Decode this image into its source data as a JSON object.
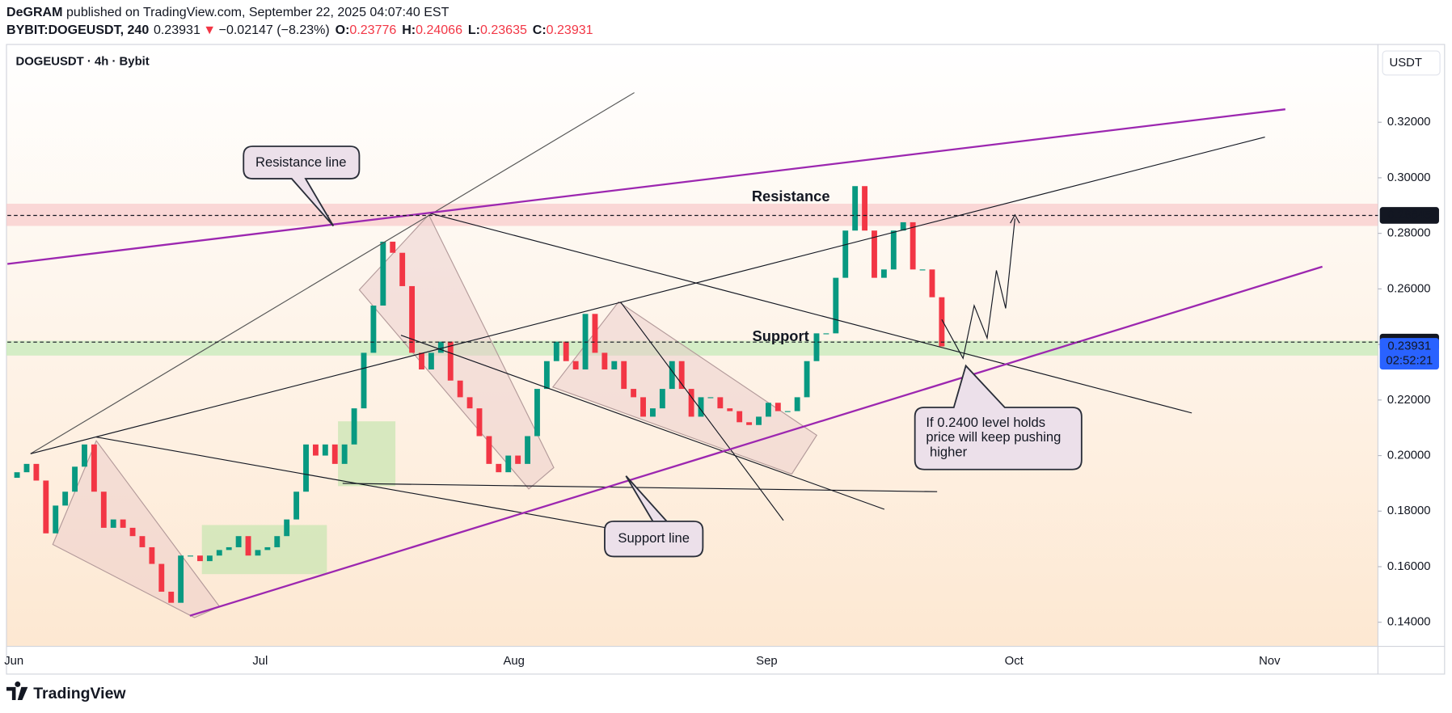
{
  "header": {
    "publisher": "DeGRAM",
    "published": "published on TradingView.com, September 22, 2025 04:07:40 EST",
    "symbol": "BYBIT:DOGEUSDT, 240",
    "last": "0.23931",
    "arrow": "▼",
    "change": "−0.02147 (−8.23%)",
    "ohlc": [
      {
        "key": "O:",
        "value": "0.23776"
      },
      {
        "key": "H:",
        "value": "0.24066"
      },
      {
        "key": "L:",
        "value": "0.23635"
      },
      {
        "key": "C:",
        "value": "0.23931"
      }
    ]
  },
  "footer": {
    "brand": "TradingView"
  },
  "chart_data": {
    "type": "candlestick",
    "title": "DOGEUSDT · 4h · Bybit",
    "currency": "USDT",
    "up_color": "#089981",
    "down_color": "#f23645",
    "values": [
      0.192,
      0.194,
      0.197,
      0.191,
      0.172,
      0.182,
      0.187,
      0.196,
      0.204,
      0.187,
      0.174,
      0.177,
      0.174,
      0.171,
      0.167,
      0.161,
      0.151,
      0.147,
      0.164,
      0.164,
      0.162,
      0.164,
      0.166,
      0.167,
      0.171,
      0.164,
      0.166,
      0.167,
      0.171,
      0.177,
      0.187,
      0.204,
      0.2,
      0.204,
      0.197,
      0.204,
      0.217,
      0.237,
      0.254,
      0.277,
      0.273,
      0.261,
      0.237,
      0.231,
      0.237,
      0.241,
      0.227,
      0.221,
      0.217,
      0.207,
      0.197,
      0.194,
      0.2,
      0.197,
      0.207,
      0.224,
      0.234,
      0.241,
      0.234,
      0.231,
      0.251,
      0.237,
      0.231,
      0.234,
      0.224,
      0.221,
      0.214,
      0.217,
      0.224,
      0.234,
      0.224,
      0.214,
      0.221,
      0.221,
      0.217,
      0.216,
      0.212,
      0.211,
      0.214,
      0.219,
      0.216,
      0.216,
      0.221,
      0.234,
      0.244,
      0.244,
      0.264,
      0.281,
      0.297,
      0.281,
      0.264,
      0.267,
      0.281,
      0.284,
      0.267,
      0.267,
      0.257,
      0.23931
    ],
    "x_labels": [
      "Jun",
      "Jul",
      "Aug",
      "Sep",
      "Oct",
      "Nov"
    ],
    "ylim": [
      0.13133,
      0.348
    ],
    "yticks": [
      {
        "value": 0.14,
        "label": "0.14000"
      },
      {
        "value": 0.16,
        "label": "0.16000"
      },
      {
        "value": 0.18,
        "label": "0.18000"
      },
      {
        "value": 0.2,
        "label": "0.20000"
      },
      {
        "value": 0.22,
        "label": "0.22000"
      },
      {
        "value": 0.24,
        "label": "0.24000"
      },
      {
        "value": 0.26,
        "label": "0.26000"
      },
      {
        "value": 0.28,
        "label": "0.28000"
      },
      {
        "value": 0.3,
        "label": "0.30000"
      },
      {
        "value": 0.32,
        "label": "0.32000"
      }
    ],
    "levels": [
      0.28645,
      0.24085
    ],
    "last_price": 0.23931,
    "countdown": "02:52:21",
    "annotations": {
      "resistance_line": "Resistance line",
      "resistance": "Resistance",
      "support": "Support",
      "support_line": "Support line",
      "note": [
        "If 0.2400 level holds",
        "price will keep pushing",
        " higher"
      ]
    }
  }
}
